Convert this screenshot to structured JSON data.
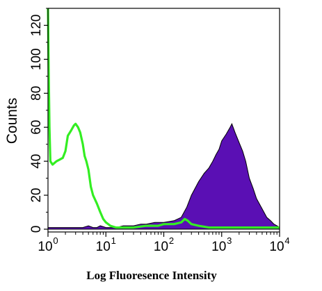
{
  "chart_data": {
    "type": "area",
    "title": "",
    "xlabel": "Log Fluoresence Intensity",
    "ylabel": "Counts",
    "x_scale": "log",
    "xlim": [
      1,
      10000
    ],
    "ylim": [
      0,
      130
    ],
    "x_ticks": [
      {
        "value": 1,
        "base": "10",
        "exp": "0"
      },
      {
        "value": 10,
        "base": "10",
        "exp": "1"
      },
      {
        "value": 100,
        "base": "10",
        "exp": "2"
      },
      {
        "value": 1000,
        "base": "10",
        "exp": "3"
      },
      {
        "value": 10000,
        "base": "10",
        "exp": "4"
      }
    ],
    "y_ticks": [
      "0",
      "20",
      "40",
      "60",
      "80",
      "100",
      "120"
    ],
    "grid": false,
    "series": [
      {
        "style": "filled",
        "color": "#5a0fb4",
        "x": [
          1,
          1.5,
          2,
          3,
          4,
          5,
          6,
          7,
          8,
          10,
          15,
          20,
          30,
          40,
          50,
          70,
          100,
          150,
          200,
          250,
          300,
          400,
          500,
          600,
          700,
          800,
          900,
          1000,
          1200,
          1400,
          1500,
          1700,
          2000,
          2300,
          2600,
          3000,
          3500,
          4000,
          5000,
          6000,
          7000,
          8000,
          9000,
          10000
        ],
        "y": [
          1,
          1,
          1,
          1,
          1,
          2,
          1,
          1,
          2,
          1,
          1,
          2,
          2,
          3,
          3,
          4,
          4,
          5,
          7,
          13,
          20,
          28,
          33,
          36,
          40,
          44,
          47,
          52,
          56,
          60,
          62,
          57,
          51,
          46,
          40,
          30,
          24,
          18,
          12,
          7,
          5,
          3,
          2,
          1
        ]
      },
      {
        "style": "line",
        "color": "#33ee22",
        "x": [
          1,
          1.03,
          1.06,
          1.1,
          1.2,
          1.4,
          1.6,
          1.8,
          2,
          2.2,
          2.5,
          2.8,
          3,
          3.3,
          3.6,
          4,
          4.3,
          4.6,
          5,
          5.5,
          6,
          7,
          8,
          9,
          10,
          12,
          15,
          20,
          30,
          50,
          80,
          100,
          150,
          200,
          230,
          260,
          300,
          400,
          600,
          1000,
          2000,
          5000,
          10000
        ],
        "y": [
          130,
          90,
          60,
          40,
          38,
          40,
          41,
          42,
          46,
          55,
          58,
          61,
          62,
          60,
          57,
          50,
          43,
          40,
          35,
          25,
          20,
          15,
          10,
          6,
          4,
          2,
          1,
          1,
          1,
          2,
          2,
          3,
          3,
          4,
          6,
          5,
          3,
          2,
          1,
          1,
          1,
          1,
          1
        ]
      }
    ]
  }
}
